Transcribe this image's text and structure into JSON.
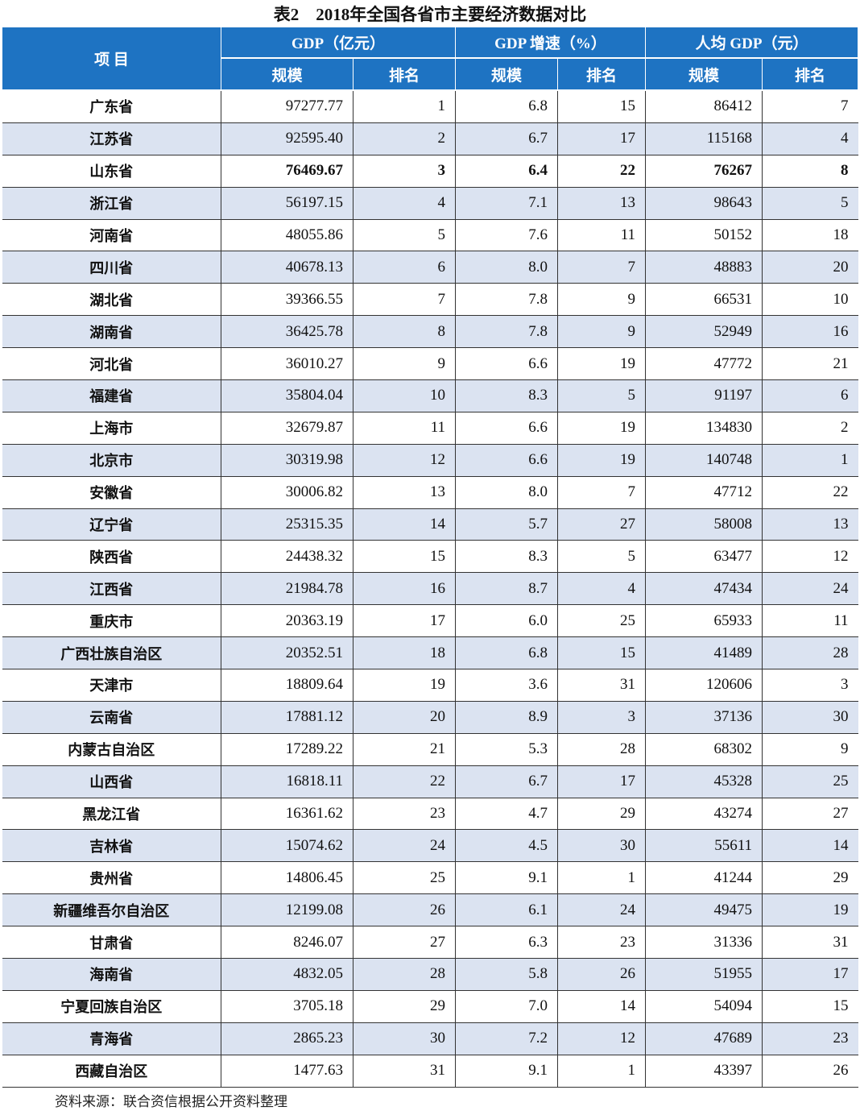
{
  "title": "表2　2018年全国各省市主要经济数据对比",
  "header": {
    "item": "项 目",
    "groups": [
      "GDP（亿元）",
      "GDP 增速（%）",
      "人均 GDP（元）"
    ],
    "sub": [
      "规模",
      "排名",
      "规模",
      "排名",
      "规模",
      "排名"
    ]
  },
  "colors": {
    "header_bg": "#1e73c2",
    "alt_row_bg": "#dbe3f1"
  },
  "rows": [
    [
      "广东省",
      "97277.77",
      "1",
      "6.8",
      "15",
      "86412",
      "7"
    ],
    [
      "江苏省",
      "92595.40",
      "2",
      "6.7",
      "17",
      "115168",
      "4"
    ],
    [
      "山东省",
      "76469.67",
      "3",
      "6.4",
      "22",
      "76267",
      "8"
    ],
    [
      "浙江省",
      "56197.15",
      "4",
      "7.1",
      "13",
      "98643",
      "5"
    ],
    [
      "河南省",
      "48055.86",
      "5",
      "7.6",
      "11",
      "50152",
      "18"
    ],
    [
      "四川省",
      "40678.13",
      "6",
      "8.0",
      "7",
      "48883",
      "20"
    ],
    [
      "湖北省",
      "39366.55",
      "7",
      "7.8",
      "9",
      "66531",
      "10"
    ],
    [
      "湖南省",
      "36425.78",
      "8",
      "7.8",
      "9",
      "52949",
      "16"
    ],
    [
      "河北省",
      "36010.27",
      "9",
      "6.6",
      "19",
      "47772",
      "21"
    ],
    [
      "福建省",
      "35804.04",
      "10",
      "8.3",
      "5",
      "91197",
      "6"
    ],
    [
      "上海市",
      "32679.87",
      "11",
      "6.6",
      "19",
      "134830",
      "2"
    ],
    [
      "北京市",
      "30319.98",
      "12",
      "6.6",
      "19",
      "140748",
      "1"
    ],
    [
      "安徽省",
      "30006.82",
      "13",
      "8.0",
      "7",
      "47712",
      "22"
    ],
    [
      "辽宁省",
      "25315.35",
      "14",
      "5.7",
      "27",
      "58008",
      "13"
    ],
    [
      "陕西省",
      "24438.32",
      "15",
      "8.3",
      "5",
      "63477",
      "12"
    ],
    [
      "江西省",
      "21984.78",
      "16",
      "8.7",
      "4",
      "47434",
      "24"
    ],
    [
      "重庆市",
      "20363.19",
      "17",
      "6.0",
      "25",
      "65933",
      "11"
    ],
    [
      "广西壮族自治区",
      "20352.51",
      "18",
      "6.8",
      "15",
      "41489",
      "28"
    ],
    [
      "天津市",
      "18809.64",
      "19",
      "3.6",
      "31",
      "120606",
      "3"
    ],
    [
      "云南省",
      "17881.12",
      "20",
      "8.9",
      "3",
      "37136",
      "30"
    ],
    [
      "内蒙古自治区",
      "17289.22",
      "21",
      "5.3",
      "28",
      "68302",
      "9"
    ],
    [
      "山西省",
      "16818.11",
      "22",
      "6.7",
      "17",
      "45328",
      "25"
    ],
    [
      "黑龙江省",
      "16361.62",
      "23",
      "4.7",
      "29",
      "43274",
      "27"
    ],
    [
      "吉林省",
      "15074.62",
      "24",
      "4.5",
      "30",
      "55611",
      "14"
    ],
    [
      "贵州省",
      "14806.45",
      "25",
      "9.1",
      "1",
      "41244",
      "29"
    ],
    [
      "新疆维吾尔自治区",
      "12199.08",
      "26",
      "6.1",
      "24",
      "49475",
      "19"
    ],
    [
      "甘肃省",
      "8246.07",
      "27",
      "6.3",
      "23",
      "31336",
      "31"
    ],
    [
      "海南省",
      "4832.05",
      "28",
      "5.8",
      "26",
      "51955",
      "17"
    ],
    [
      "宁夏回族自治区",
      "3705.18",
      "29",
      "7.0",
      "14",
      "54094",
      "15"
    ],
    [
      "青海省",
      "2865.23",
      "30",
      "7.2",
      "12",
      "47689",
      "23"
    ],
    [
      "西藏自治区",
      "1477.63",
      "31",
      "9.1",
      "1",
      "43397",
      "26"
    ]
  ],
  "highlight_row": "山东省",
  "source": "资料来源：联合资信根据公开资料整理"
}
